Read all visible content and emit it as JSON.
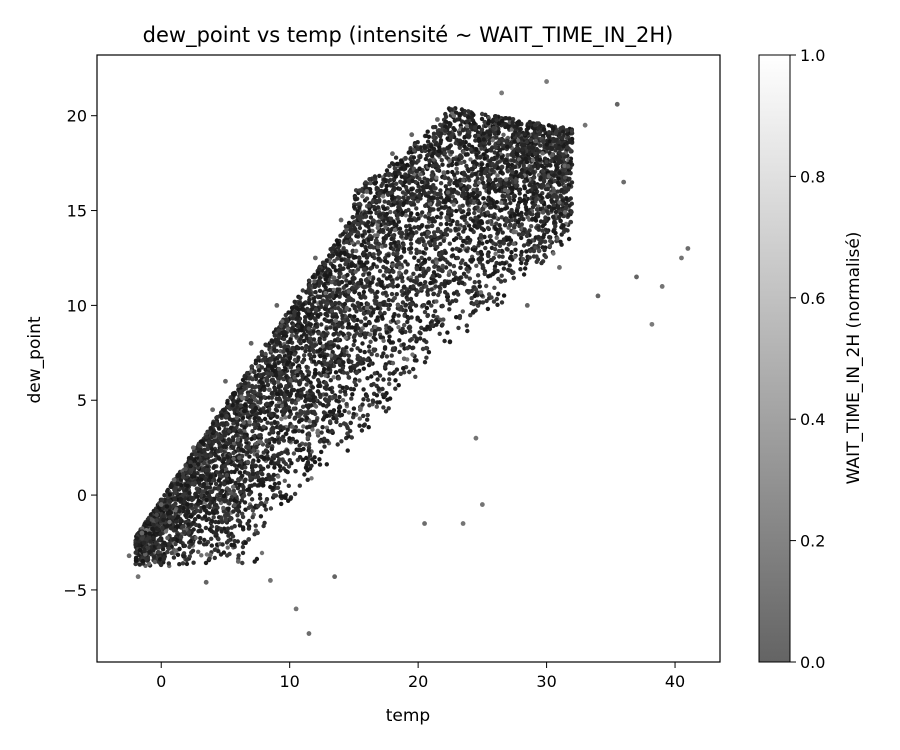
{
  "chart_data": {
    "type": "scatter",
    "title": "dew_point vs temp (intensité ~ WAIT_TIME_IN_2H)",
    "xlabel": "temp",
    "ylabel": "dew_point",
    "xlim": [
      -5,
      43.5
    ],
    "ylim": [
      -8.8,
      23.2
    ],
    "x_ticks": [
      0,
      10,
      20,
      30,
      40
    ],
    "y_ticks": [
      -5,
      0,
      5,
      10,
      15,
      20
    ],
    "x_tick_labels": [
      "0",
      "10",
      "20",
      "30",
      "40"
    ],
    "y_tick_labels": [
      "−5",
      "0",
      "5",
      "10",
      "15",
      "20"
    ],
    "grid": false,
    "colorbar": {
      "label": "WAIT_TIME_IN_2H (normalisé)",
      "range": [
        0.0,
        1.0
      ],
      "ticks": [
        0.0,
        0.2,
        0.4,
        0.6,
        0.8,
        1.0
      ],
      "tick_labels": [
        "0.0",
        "0.2",
        "0.4",
        "0.6",
        "0.8",
        "1.0"
      ],
      "color_low": "#646464",
      "color_high": "#ffffff"
    },
    "point_color_dense": "#1e1e1e",
    "points": [
      {
        "x": -2.5,
        "y": -3.2,
        "v": 0.05
      },
      {
        "x": -1.8,
        "y": -4.3,
        "v": 0.1
      },
      {
        "x": -1.5,
        "y": -2.0,
        "v": 0.02
      },
      {
        "x": 0.0,
        "y": -0.5,
        "v": 0.0
      },
      {
        "x": 1.0,
        "y": 0.8,
        "v": 0.0
      },
      {
        "x": 2.5,
        "y": 2.5,
        "v": 0.0
      },
      {
        "x": 4.0,
        "y": 4.5,
        "v": 0.0
      },
      {
        "x": 3.5,
        "y": -4.6,
        "v": 0.0
      },
      {
        "x": 5.0,
        "y": 6.0,
        "v": 0.0
      },
      {
        "x": 7.0,
        "y": 8.0,
        "v": 0.0
      },
      {
        "x": 6.0,
        "y": -3.5,
        "v": 0.0
      },
      {
        "x": 8.5,
        "y": -4.5,
        "v": 0.1
      },
      {
        "x": 9.0,
        "y": 10.0,
        "v": 0.0
      },
      {
        "x": 10.5,
        "y": -6.0,
        "v": 0.1
      },
      {
        "x": 11.5,
        "y": -7.3,
        "v": 0.05
      },
      {
        "x": 12.0,
        "y": 12.5,
        "v": 0.0
      },
      {
        "x": 13.5,
        "y": -4.3,
        "v": 0.0
      },
      {
        "x": 14.0,
        "y": 14.5,
        "v": 0.0
      },
      {
        "x": 15.5,
        "y": 4.5,
        "v": 0.0
      },
      {
        "x": 16.0,
        "y": 16.0,
        "v": 0.0
      },
      {
        "x": 18.0,
        "y": 18.0,
        "v": 0.0
      },
      {
        "x": 19.5,
        "y": 19.0,
        "v": 0.0
      },
      {
        "x": 20.5,
        "y": -1.5,
        "v": 0.05
      },
      {
        "x": 21.5,
        "y": 19.8,
        "v": 0.0
      },
      {
        "x": 22.0,
        "y": 17.0,
        "v": 0.0
      },
      {
        "x": 23.5,
        "y": -1.5,
        "v": 0.1
      },
      {
        "x": 24.5,
        "y": 3.0,
        "v": 0.1
      },
      {
        "x": 25.0,
        "y": -0.5,
        "v": 0.1
      },
      {
        "x": 26.5,
        "y": 21.2,
        "v": 0.15
      },
      {
        "x": 27.0,
        "y": 16.0,
        "v": 0.0
      },
      {
        "x": 28.5,
        "y": 10.0,
        "v": 0.0
      },
      {
        "x": 30.0,
        "y": 21.8,
        "v": 0.15
      },
      {
        "x": 31.0,
        "y": 12.0,
        "v": 0.05
      },
      {
        "x": 33.0,
        "y": 19.5,
        "v": 0.1
      },
      {
        "x": 34.0,
        "y": 10.5,
        "v": 0.0
      },
      {
        "x": 35.5,
        "y": 20.6,
        "v": 0.0
      },
      {
        "x": 36.0,
        "y": 16.5,
        "v": 0.05
      },
      {
        "x": 37.0,
        "y": 11.5,
        "v": 0.0
      },
      {
        "x": 38.2,
        "y": 9.0,
        "v": 0.15
      },
      {
        "x": 39.0,
        "y": 11.0,
        "v": 0.1
      },
      {
        "x": 40.5,
        "y": 12.5,
        "v": 0.1
      },
      {
        "x": 41.0,
        "y": 13.0,
        "v": 0.05
      }
    ]
  }
}
